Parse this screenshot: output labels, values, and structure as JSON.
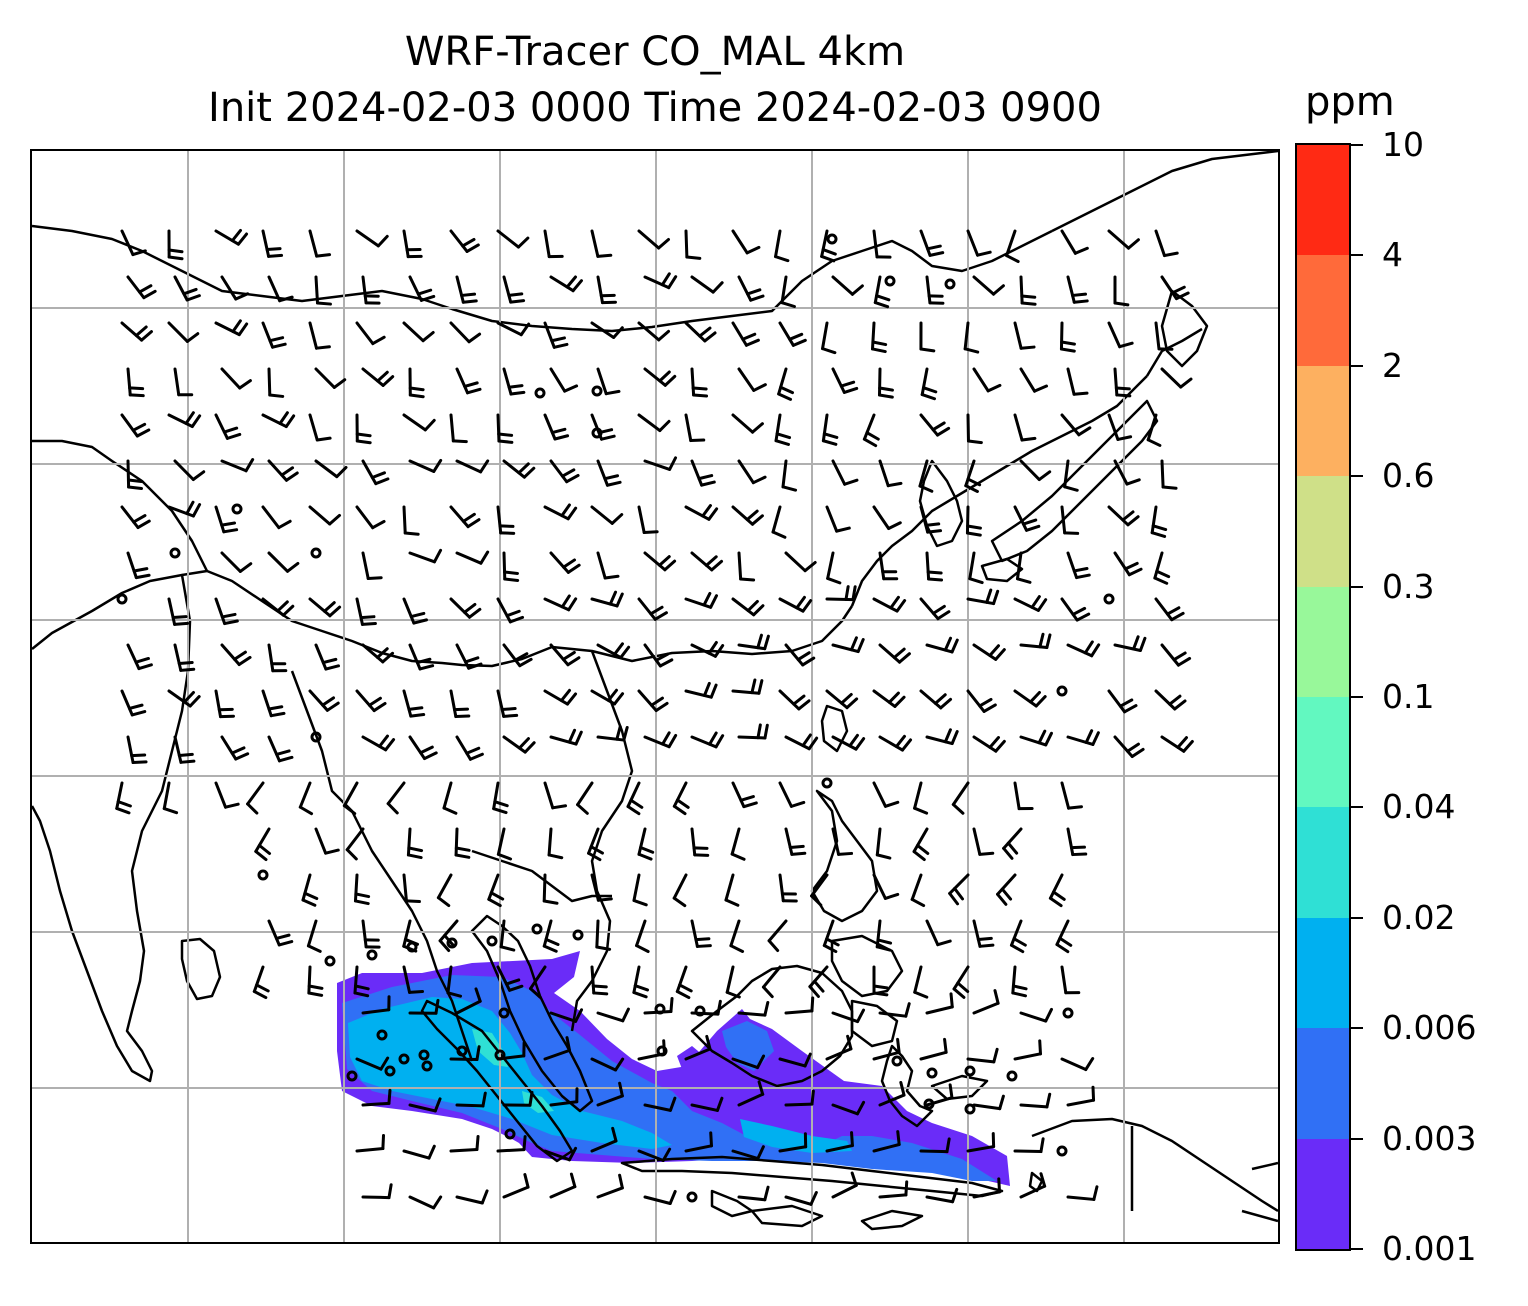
{
  "title": {
    "line1": "WRF-Tracer CO_MAL 4km",
    "line2": "Init 2024-02-03 0000 Time 2024-02-03 0900"
  },
  "colorbar": {
    "unit": "ppm",
    "levels": [
      "10",
      "4",
      "2",
      "0.6",
      "0.3",
      "0.1",
      "0.04",
      "0.02",
      "0.006",
      "0.003",
      "0.001"
    ],
    "colors": [
      "#ff2a14",
      "#ff6a3a",
      "#fdb060",
      "#cfe088",
      "#98f89a",
      "#62f8c0",
      "#2fe0d5",
      "#00b0f0",
      "#3070f5",
      "#6a2cf8"
    ]
  },
  "map": {
    "coastline_color": "#000000",
    "gridline_color": "#b0b0b0",
    "gridlines": "on",
    "wind_barbs": "black",
    "plume_note": "CO tracer plume over Malay Peninsula, Sumatra and Borneo at low concentrations"
  }
}
